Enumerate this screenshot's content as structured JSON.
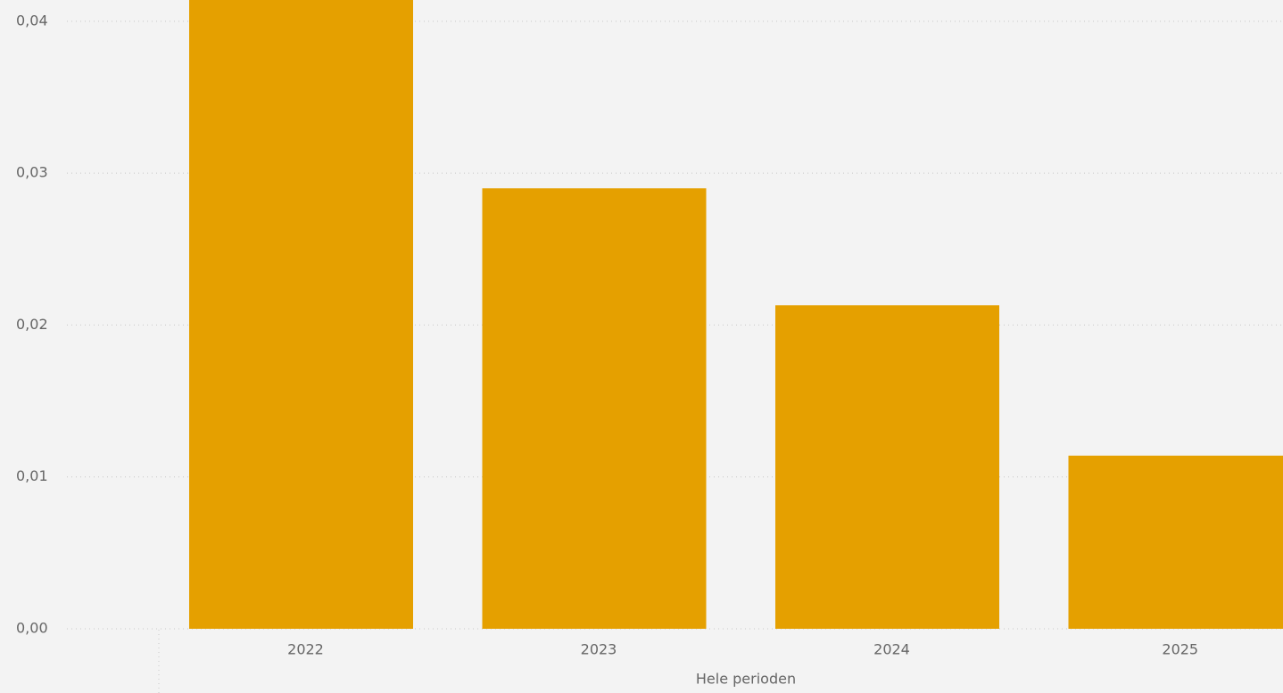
{
  "chart_data": {
    "type": "bar",
    "x_label": "Hele perioden",
    "categories": [
      "2022",
      "2023",
      "2024",
      "2025"
    ],
    "values": [
      0.045,
      0.029,
      0.0213,
      0.0114
    ],
    "color": "#e5a000",
    "ylim": [
      0,
      0.0414
    ],
    "yticks": [
      {
        "value": 0,
        "label": "0,00"
      },
      {
        "value": 0.01,
        "label": "0,01"
      },
      {
        "value": 0.02,
        "label": "0,02"
      },
      {
        "value": 0.03,
        "label": "0,03"
      },
      {
        "value": 0.04,
        "label": "0,04"
      }
    ],
    "grid": true
  }
}
